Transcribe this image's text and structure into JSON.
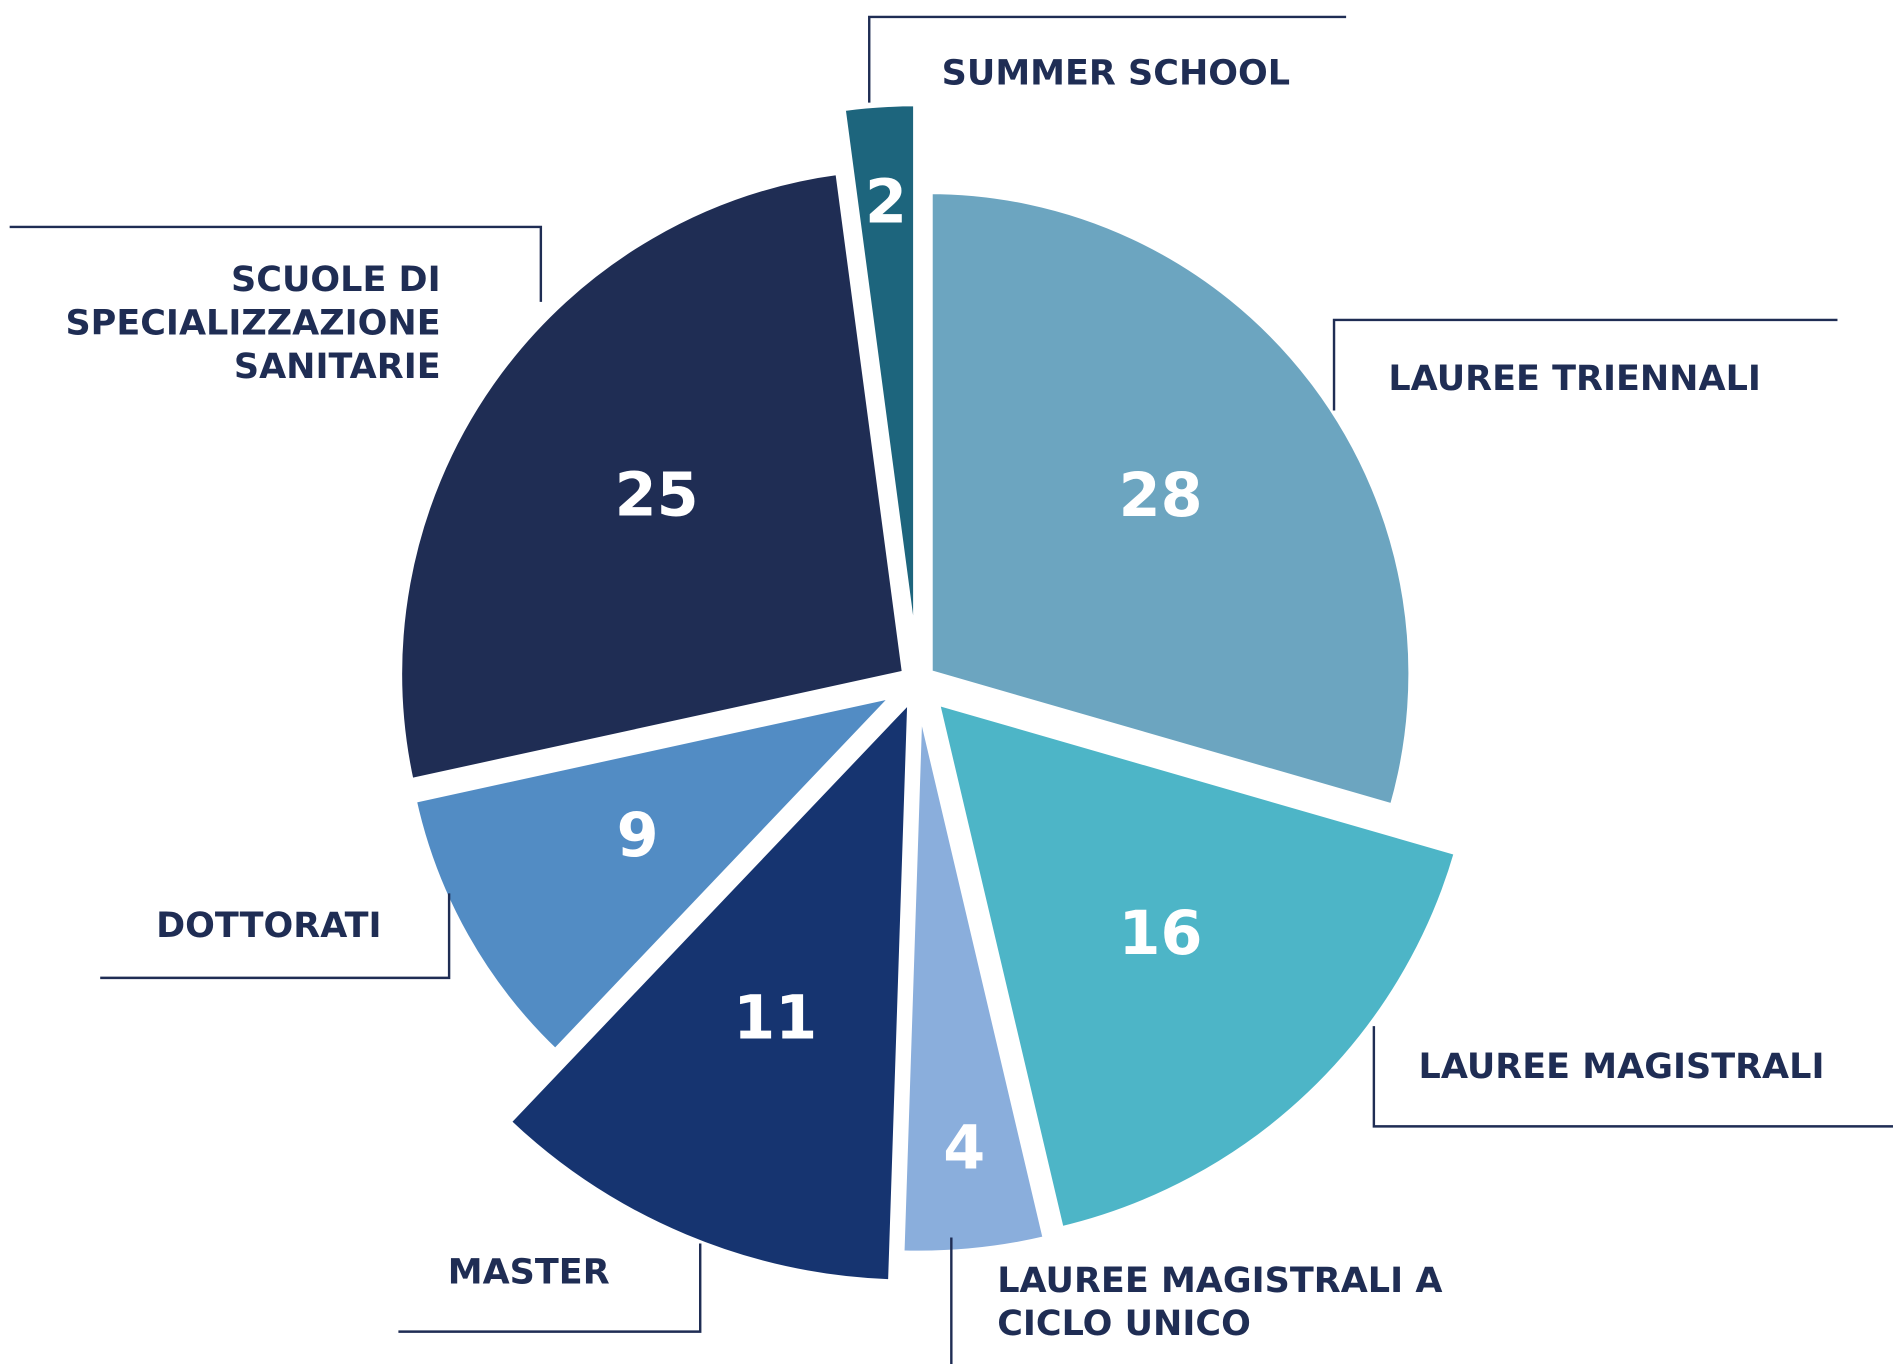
{
  "chart_data": {
    "type": "pie",
    "categories": [
      "LAUREE TRIENNALI",
      "LAUREE MAGISTRALI",
      "LAUREE MAGISTRALI A CICLO UNICO",
      "MASTER",
      "DOTTORATI",
      "SCUOLE DI SPECIALIZZAZIONE SANITARIE",
      "SUMMER SCHOOL"
    ],
    "values": [
      28,
      16,
      4,
      11,
      9,
      25,
      2
    ],
    "colors": [
      "#6ca5c0",
      "#4db5c7",
      "#8aaedc",
      "#163470",
      "#528cc4",
      "#1f2d54",
      "#1d657d"
    ]
  }
}
